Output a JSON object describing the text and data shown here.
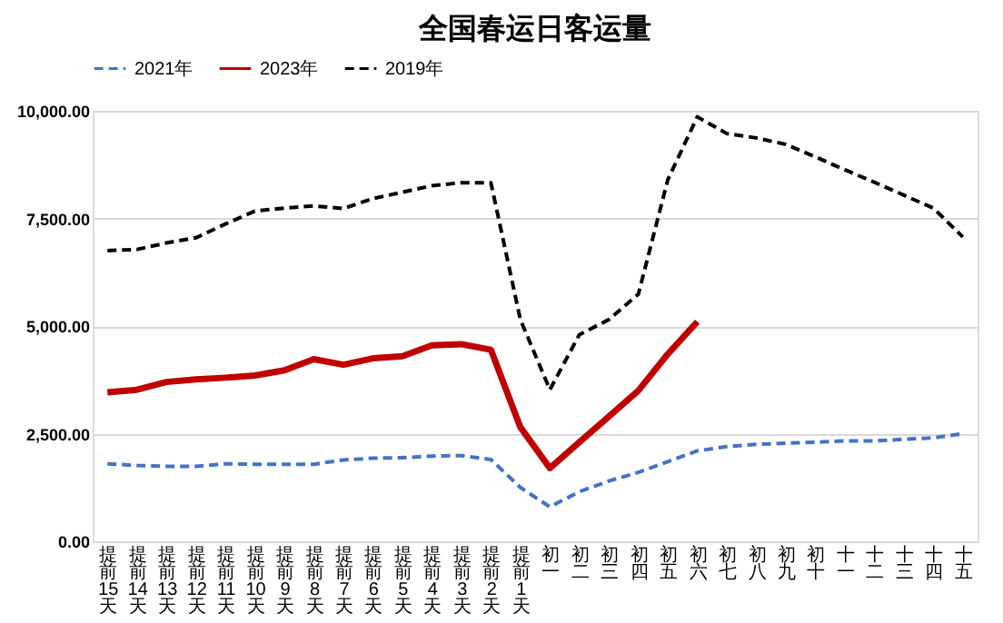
{
  "chart_data": {
    "type": "line",
    "title": "全国春运日客运量",
    "categories": [
      "提前15天",
      "提前14天",
      "提前13天",
      "提前12天",
      "提前11天",
      "提前10天",
      "提前9天",
      "提前8天",
      "提前7天",
      "提前6天",
      "提前5天",
      "提前4天",
      "提前3天",
      "提前2天",
      "提前1天",
      "初一",
      "初二",
      "初三",
      "初四",
      "初五",
      "初六",
      "初七",
      "初八",
      "初九",
      "初十",
      "十一",
      "十二",
      "十三",
      "十四",
      "十五"
    ],
    "series": [
      {
        "name": "2021年",
        "color": "#4472c4",
        "line_style": "dashed",
        "values": [
          1800,
          1760,
          1740,
          1740,
          1800,
          1790,
          1790,
          1790,
          1890,
          1930,
          1940,
          1980,
          1990,
          1900,
          1250,
          800,
          1150,
          1400,
          1600,
          1850,
          2100,
          2200,
          2250,
          2280,
          2300,
          2330,
          2330,
          2370,
          2400,
          2500
        ]
      },
      {
        "name": "2023年",
        "color": "#c00000",
        "line_style": "solid",
        "values": [
          3460,
          3520,
          3700,
          3760,
          3800,
          3850,
          3970,
          4230,
          4100,
          4250,
          4300,
          4550,
          4580,
          4450,
          2650,
          1700,
          2300,
          2900,
          3500,
          4350,
          5100,
          null,
          null,
          null,
          null,
          null,
          null,
          null,
          null,
          null
        ]
      },
      {
        "name": "2019年",
        "color": "#000000",
        "line_style": "dashed",
        "values": [
          6750,
          6780,
          6930,
          7050,
          7370,
          7670,
          7740,
          7790,
          7730,
          7960,
          8110,
          8260,
          8330,
          8330,
          5150,
          3520,
          4800,
          5150,
          5740,
          8400,
          9860,
          9470,
          9370,
          9220,
          8930,
          8630,
          8340,
          8040,
          7740,
          7070
        ]
      }
    ],
    "ylim": [
      0,
      10000
    ],
    "yticks": [
      {
        "value": 0,
        "label": "0.00"
      },
      {
        "value": 2500,
        "label": "2,500.00"
      },
      {
        "value": 5000,
        "label": "5,000.00"
      },
      {
        "value": 7500,
        "label": "7,500.00"
      },
      {
        "value": 10000,
        "label": "10,000.00"
      }
    ],
    "grid": "y",
    "legend": "top"
  }
}
